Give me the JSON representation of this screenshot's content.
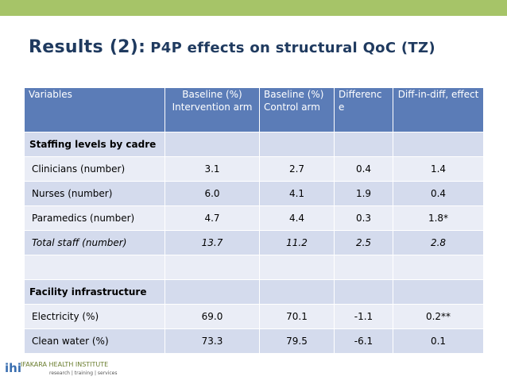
{
  "slide": {
    "title_main": "Results (2):",
    "title_sub": "P4P effects on structural QoC (TZ)"
  },
  "table": {
    "headers": [
      "Variables",
      "Baseline (%) Intervention arm",
      "Baseline (%) Control arm",
      "Differenc e",
      "Diff-in-diff, effect"
    ],
    "rows": [
      {
        "label": "Staffing levels by cadre",
        "values": [
          "",
          "",
          "",
          ""
        ]
      },
      {
        "label": "Clinicians (number)",
        "values": [
          "3.1",
          "2.7",
          "0.4",
          "1.4"
        ]
      },
      {
        "label": "Nurses (number)",
        "values": [
          "6.0",
          "4.1",
          "1.9",
          "0.4"
        ]
      },
      {
        "label": "Paramedics (number)",
        "values": [
          "4.7",
          "4.4",
          "0.3",
          "1.8*"
        ]
      },
      {
        "label": "Total staff (number)",
        "values": [
          "13.7",
          "11.2",
          "2.5",
          "2.8"
        ]
      },
      {
        "label": "",
        "values": [
          "",
          "",
          "",
          ""
        ]
      },
      {
        "label": "Facility infrastructure",
        "values": [
          "",
          "",
          "",
          ""
        ]
      },
      {
        "label": "Electricity (%)",
        "values": [
          "69.0",
          "70.1",
          "-1.1",
          "0.2**"
        ]
      },
      {
        "label": "Clean water (%)",
        "values": [
          "73.3",
          "79.5",
          "-6.1",
          "0.1"
        ]
      }
    ]
  },
  "logo": {
    "mark": "ihi",
    "name": "IFAKARA HEALTH INSTITUTE",
    "tagline": "research | training | services"
  },
  "colors": {
    "top_bar": "#a6c468",
    "header_bg": "#5b7cb7",
    "row_dark": "#d4dbed",
    "row_light": "#eaedf6",
    "title": "#1f3a5f"
  }
}
